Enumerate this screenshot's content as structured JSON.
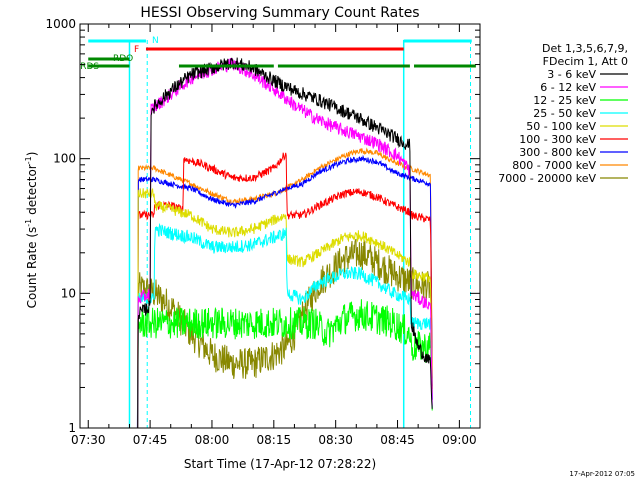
{
  "chart_data": {
    "type": "line",
    "title": "HESSI Observing Summary Count Rates",
    "xlabel": "Start Time (17-Apr-12 07:28:22)",
    "ylabel_main": "Count Rate (s",
    "ylabel_sup1": "-1",
    "ylabel_mid": " detector",
    "ylabel_sup2": "-1",
    "ylabel_end": ")",
    "yscale": "log",
    "ylim": [
      1,
      1000
    ],
    "xlim_minutes": [
      -2,
      95
    ],
    "x_ticks": [
      {
        "m": 0,
        "label": "07:30"
      },
      {
        "m": 15,
        "label": "07:45"
      },
      {
        "m": 30,
        "label": "08:00"
      },
      {
        "m": 45,
        "label": "08:15"
      },
      {
        "m": 60,
        "label": "08:30"
      },
      {
        "m": 75,
        "label": "08:45"
      },
      {
        "m": 90,
        "label": "09:00"
      }
    ],
    "y_ticks": [
      {
        "v": 1,
        "label": "1"
      },
      {
        "v": 10,
        "label": "10"
      },
      {
        "v": 100,
        "label": "100"
      },
      {
        "v": 1000,
        "label": "1000"
      }
    ],
    "legend": {
      "header1": "Det 1,3,5,6,7,9,",
      "header2": "FDecim 1, Att 0",
      "placement": "right"
    },
    "series": [
      {
        "name": "3 - 6 keV",
        "color": "#000000",
        "start": 12,
        "end": 83.5,
        "pts": [
          [
            12,
            1
          ],
          [
            12.1,
            7
          ],
          [
            15,
            8
          ],
          [
            15.2,
            230
          ],
          [
            20,
            320
          ],
          [
            25,
            420
          ],
          [
            30,
            470
          ],
          [
            35,
            520
          ],
          [
            40,
            470
          ],
          [
            45,
            380
          ],
          [
            50,
            320
          ],
          [
            55,
            280
          ],
          [
            60,
            240
          ],
          [
            65,
            205
          ],
          [
            70,
            170
          ],
          [
            75,
            140
          ],
          [
            78,
            125
          ],
          [
            78.3,
            6
          ],
          [
            80,
            4
          ],
          [
            83,
            3
          ],
          [
            83.5,
            1
          ]
        ],
        "noise": 0.05
      },
      {
        "name": "6 - 12 keV",
        "color": "#ff00ff",
        "start": 12,
        "end": 83.5,
        "pts": [
          [
            12,
            1
          ],
          [
            12.1,
            9
          ],
          [
            15,
            10
          ],
          [
            15.2,
            230
          ],
          [
            20,
            300
          ],
          [
            25,
            400
          ],
          [
            30,
            460
          ],
          [
            35,
            510
          ],
          [
            40,
            420
          ],
          [
            45,
            330
          ],
          [
            50,
            250
          ],
          [
            55,
            200
          ],
          [
            60,
            170
          ],
          [
            65,
            150
          ],
          [
            70,
            130
          ],
          [
            75,
            105
          ],
          [
            78,
            82
          ],
          [
            78.3,
            10
          ],
          [
            83,
            8
          ],
          [
            83.5,
            1
          ]
        ],
        "noise": 0.05
      },
      {
        "name": "12 - 25 keV",
        "color": "#00ff00",
        "start": 12,
        "end": 83.5,
        "pts": [
          [
            12,
            1
          ],
          [
            12.1,
            6
          ],
          [
            20,
            6
          ],
          [
            30,
            6
          ],
          [
            40,
            6
          ],
          [
            50,
            6
          ],
          [
            55,
            6
          ],
          [
            58,
            5
          ],
          [
            62,
            6.5
          ],
          [
            66,
            7
          ],
          [
            70,
            6.5
          ],
          [
            74,
            6
          ],
          [
            78,
            5
          ],
          [
            78.3,
            4
          ],
          [
            83,
            4
          ],
          [
            83.5,
            1
          ]
        ],
        "noise": 0.12
      },
      {
        "name": "25 - 50 keV",
        "color": "#00ffff",
        "start": 12,
        "end": 83.5,
        "pts": [
          [
            12,
            1
          ],
          [
            12.1,
            9
          ],
          [
            16,
            9
          ],
          [
            16.1,
            30
          ],
          [
            20,
            28
          ],
          [
            25,
            26
          ],
          [
            30,
            22
          ],
          [
            35,
            22
          ],
          [
            40,
            23
          ],
          [
            45,
            26
          ],
          [
            48,
            28
          ],
          [
            48.2,
            10
          ],
          [
            52,
            9
          ],
          [
            56,
            12
          ],
          [
            62,
            14
          ],
          [
            66,
            14
          ],
          [
            70,
            12
          ],
          [
            74,
            10
          ],
          [
            78,
            9
          ],
          [
            78.3,
            6
          ],
          [
            83,
            6
          ],
          [
            83.5,
            1
          ]
        ],
        "noise": 0.05
      },
      {
        "name": "50 - 100 keV",
        "color": "#dddd00",
        "start": 12,
        "end": 83.5,
        "pts": [
          [
            12,
            1
          ],
          [
            12.1,
            55
          ],
          [
            16,
            55
          ],
          [
            16.1,
            45
          ],
          [
            20,
            42
          ],
          [
            25,
            38
          ],
          [
            30,
            30
          ],
          [
            35,
            28
          ],
          [
            40,
            30
          ],
          [
            45,
            35
          ],
          [
            48,
            38
          ],
          [
            48.2,
            18
          ],
          [
            52,
            17
          ],
          [
            56,
            20
          ],
          [
            62,
            26
          ],
          [
            66,
            27
          ],
          [
            70,
            24
          ],
          [
            74,
            20
          ],
          [
            78,
            17
          ],
          [
            78.3,
            14
          ],
          [
            83,
            13
          ],
          [
            83.5,
            1
          ]
        ],
        "noise": 0.04
      },
      {
        "name": "100 - 300 keV",
        "color": "#ff0000",
        "start": 12,
        "end": 83.5,
        "pts": [
          [
            12,
            1
          ],
          [
            12.1,
            38
          ],
          [
            16,
            38
          ],
          [
            16.1,
            45
          ],
          [
            20,
            45
          ],
          [
            23,
            42
          ],
          [
            23.1,
            100
          ],
          [
            28,
            90
          ],
          [
            35,
            72
          ],
          [
            40,
            72
          ],
          [
            45,
            85
          ],
          [
            48,
            110
          ],
          [
            48.2,
            38
          ],
          [
            52,
            38
          ],
          [
            56,
            45
          ],
          [
            62,
            55
          ],
          [
            66,
            57
          ],
          [
            70,
            52
          ],
          [
            74,
            45
          ],
          [
            78,
            40
          ],
          [
            78.3,
            38
          ],
          [
            83,
            35
          ],
          [
            83.5,
            1
          ]
        ],
        "noise": 0.03
      },
      {
        "name": "300 - 800 keV",
        "color": "#0000ff",
        "start": 10,
        "end": 83.5,
        "pts": [
          [
            10,
            1
          ],
          [
            12,
            1
          ],
          [
            12.1,
            70
          ],
          [
            16,
            70
          ],
          [
            20,
            65
          ],
          [
            25,
            60
          ],
          [
            30,
            50
          ],
          [
            35,
            45
          ],
          [
            40,
            48
          ],
          [
            45,
            55
          ],
          [
            48,
            60
          ],
          [
            52,
            65
          ],
          [
            56,
            80
          ],
          [
            62,
            95
          ],
          [
            66,
            100
          ],
          [
            70,
            95
          ],
          [
            74,
            80
          ],
          [
            78,
            72
          ],
          [
            83,
            65
          ],
          [
            83.5,
            1
          ]
        ],
        "noise": 0.02
      },
      {
        "name": "800 - 7000 keV",
        "color": "#ff8800",
        "start": 12,
        "end": 83.5,
        "pts": [
          [
            12,
            1
          ],
          [
            12.1,
            85
          ],
          [
            16,
            85
          ],
          [
            20,
            75
          ],
          [
            25,
            65
          ],
          [
            30,
            55
          ],
          [
            35,
            48
          ],
          [
            40,
            50
          ],
          [
            45,
            55
          ],
          [
            48,
            60
          ],
          [
            52,
            70
          ],
          [
            56,
            85
          ],
          [
            62,
            105
          ],
          [
            66,
            115
          ],
          [
            70,
            110
          ],
          [
            74,
            95
          ],
          [
            78,
            85
          ],
          [
            83,
            75
          ],
          [
            83.5,
            1
          ]
        ],
        "noise": 0.02
      },
      {
        "name": "7000 - 20000 keV",
        "color": "#888800",
        "start": 12,
        "end": 83.5,
        "pts": [
          [
            12,
            1
          ],
          [
            12.1,
            11
          ],
          [
            16,
            10
          ],
          [
            20,
            8
          ],
          [
            25,
            5
          ],
          [
            30,
            3.5
          ],
          [
            35,
            3
          ],
          [
            40,
            3
          ],
          [
            45,
            3.5
          ],
          [
            48,
            4
          ],
          [
            50,
            5
          ],
          [
            52,
            7
          ],
          [
            56,
            12
          ],
          [
            62,
            18
          ],
          [
            66,
            20
          ],
          [
            70,
            17
          ],
          [
            74,
            14
          ],
          [
            78,
            12
          ],
          [
            83,
            11
          ],
          [
            83.5,
            1
          ]
        ],
        "noise": 0.12
      }
    ],
    "annotations": {
      "N": {
        "label": "N",
        "color": "#00ffff",
        "segments": [
          [
            0,
            14
          ],
          [
            76.5,
            93
          ]
        ]
      },
      "F": {
        "label": "F",
        "color": "#ff0000",
        "segments": [
          [
            14,
            76.5
          ]
        ]
      },
      "RDO": {
        "label": "RDO",
        "color": "#008800",
        "segments": [
          [
            0,
            10
          ]
        ]
      },
      "RDS": {
        "label": "RDS",
        "color": "#008800",
        "segments": [
          [
            22,
            45
          ],
          [
            46,
            78
          ],
          [
            79,
            94
          ]
        ]
      }
    },
    "vlines": {
      "solid": [
        10,
        76.5
      ],
      "dashed": [
        14.3,
        92.7
      ],
      "color": "#00ffff"
    },
    "timestamp": "17-Apr-2012 07:05"
  }
}
